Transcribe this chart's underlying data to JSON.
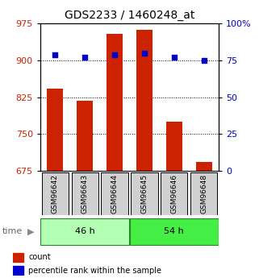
{
  "title": "GDS2233 / 1460248_at",
  "categories": [
    "GSM96642",
    "GSM96643",
    "GSM96644",
    "GSM96645",
    "GSM96646",
    "GSM96648"
  ],
  "bar_values": [
    843,
    818,
    955,
    963,
    775,
    693
  ],
  "percentile_values": [
    79,
    77,
    79,
    80,
    77,
    75
  ],
  "bar_color": "#cc2200",
  "percentile_color": "#0000cc",
  "ylim_left": [
    675,
    975
  ],
  "ylim_right": [
    0,
    100
  ],
  "yticks_left": [
    675,
    750,
    825,
    900,
    975
  ],
  "yticks_right": [
    0,
    25,
    50,
    75,
    100
  ],
  "ytick_labels_right": [
    "0",
    "25",
    "50",
    "75",
    "100%"
  ],
  "groups": [
    {
      "label": "46 h",
      "indices": [
        0,
        1,
        2
      ],
      "color": "#b3ffb3"
    },
    {
      "label": "54 h",
      "indices": [
        3,
        4,
        5
      ],
      "color": "#44ee44"
    }
  ],
  "time_label": "time",
  "legend_items": [
    {
      "label": "count",
      "color": "#cc2200"
    },
    {
      "label": "percentile rank within the sample",
      "color": "#0000cc"
    }
  ],
  "bar_width": 0.55,
  "background_color": "#ffffff",
  "title_fontsize": 10,
  "tick_fontsize": 8,
  "cat_fontsize": 6.5,
  "group_fontsize": 8,
  "legend_fontsize": 7
}
